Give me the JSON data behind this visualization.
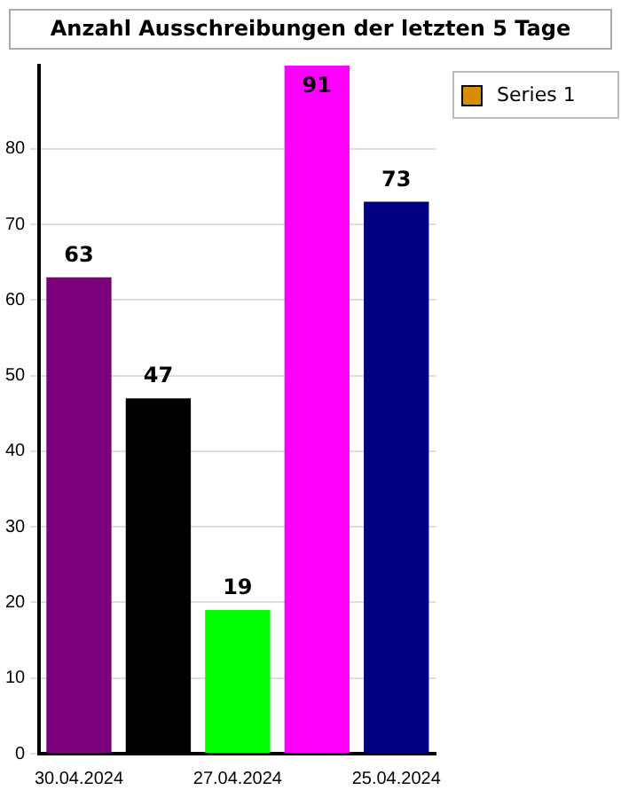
{
  "chart_data": {
    "type": "bar",
    "title": "Anzahl Ausschreibungen der letzten 5 Tage",
    "categories": [
      "30.04.2024",
      null,
      "27.04.2024",
      null,
      "25.04.2024"
    ],
    "series": [
      {
        "name": "Series 1",
        "color": "#d98c00",
        "colors": [
          "#7b007b",
          "#000000",
          "#00ff00",
          "#ff00ff",
          "#000080"
        ],
        "values": [
          63,
          47,
          19,
          91,
          73
        ]
      }
    ],
    "ylim": [
      0,
      91
    ],
    "yticks": [
      0,
      10,
      20,
      30,
      40,
      50,
      60,
      70,
      80
    ],
    "grid": "y",
    "legend": "top right",
    "data_labels": true
  }
}
